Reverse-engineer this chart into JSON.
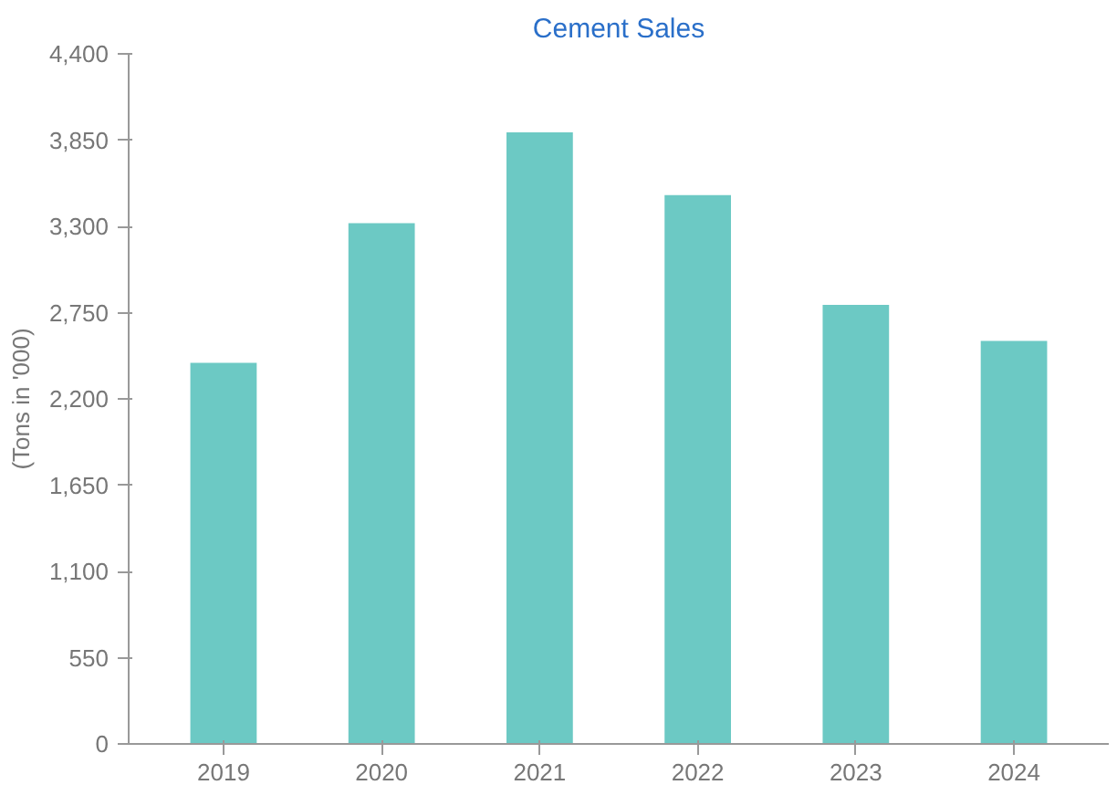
{
  "chart_data": {
    "type": "bar",
    "title": "Cement Sales",
    "ylabel": "(Tons in '000)",
    "categories": [
      "2019",
      "2020",
      "2021",
      "2022",
      "2023",
      "2024"
    ],
    "values": [
      2430,
      3320,
      3900,
      3500,
      2800,
      2570
    ],
    "color": "#6cc9c4",
    "ylim": [
      0,
      4400
    ],
    "yticks": [
      {
        "value": 0,
        "label": "0"
      },
      {
        "value": 550,
        "label": "550"
      },
      {
        "value": 1100,
        "label": "1,100"
      },
      {
        "value": 1650,
        "label": "1,650"
      },
      {
        "value": 2200,
        "label": "2,200"
      },
      {
        "value": 2750,
        "label": "2,750"
      },
      {
        "value": 3300,
        "label": "3,300"
      },
      {
        "value": 3850,
        "label": "3,850"
      },
      {
        "value": 4400,
        "label": "4,400"
      }
    ],
    "grid": false
  }
}
